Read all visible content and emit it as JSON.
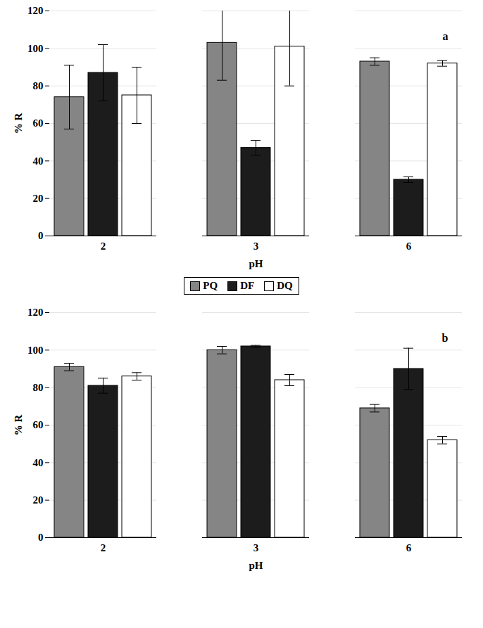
{
  "chart_data": [
    {
      "type": "bar",
      "annotation": "a",
      "xlabel": "pH",
      "ylabel": "% R",
      "categories": [
        "2",
        "3",
        "6"
      ],
      "series": [
        {
          "name": "PQ",
          "color": "#858585",
          "values": [
            74,
            103,
            93
          ],
          "errors": [
            17,
            20,
            2
          ]
        },
        {
          "name": "DF",
          "color": "#1c1c1c",
          "values": [
            87,
            47,
            30
          ],
          "errors": [
            15,
            4,
            1.5
          ]
        },
        {
          "name": "DQ",
          "color": "#ffffff",
          "values": [
            75,
            101,
            92
          ],
          "errors": [
            15,
            21,
            1.5
          ]
        }
      ],
      "ylim": [
        0,
        120
      ],
      "yticks": [
        0,
        20,
        40,
        60,
        80,
        100,
        120
      ],
      "grid": true,
      "legend": "bottom"
    },
    {
      "type": "bar",
      "annotation": "b",
      "xlabel": "pH",
      "ylabel": "% R",
      "categories": [
        "2",
        "3",
        "6"
      ],
      "series": [
        {
          "name": "PQ",
          "color": "#858585",
          "values": [
            91,
            100,
            69
          ],
          "errors": [
            2,
            2,
            2
          ]
        },
        {
          "name": "DF",
          "color": "#1c1c1c",
          "values": [
            81,
            102,
            90
          ],
          "errors": [
            4,
            0.5,
            11
          ]
        },
        {
          "name": "DQ",
          "color": "#ffffff",
          "values": [
            86,
            84,
            52
          ],
          "errors": [
            2,
            3,
            2
          ]
        }
      ],
      "ylim": [
        0,
        120
      ],
      "yticks": [
        0,
        20,
        40,
        60,
        80,
        100,
        120
      ],
      "grid": true
    }
  ]
}
